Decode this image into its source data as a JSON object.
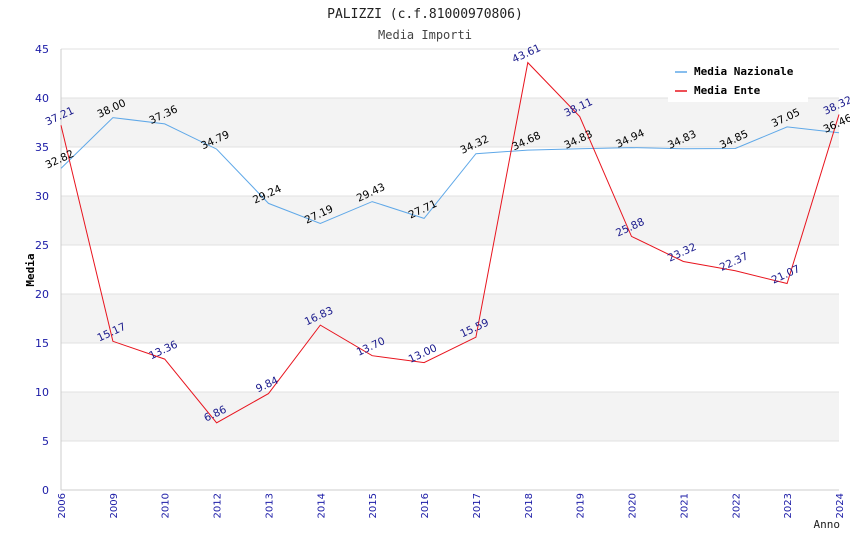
{
  "chart_data": {
    "type": "line",
    "title": "PALIZZI (c.f.81000970806)",
    "subtitle": "Media Importi",
    "ylabel": "Media",
    "xlabel": "Anno",
    "ylim": [
      0,
      45
    ],
    "yticks": [
      0,
      5,
      10,
      15,
      20,
      25,
      30,
      35,
      40,
      45
    ],
    "categories": [
      "2006",
      "2009",
      "2010",
      "2012",
      "2013",
      "2014",
      "2015",
      "2016",
      "2017",
      "2018",
      "2019",
      "2020",
      "2021",
      "2022",
      "2023",
      "2024"
    ],
    "series": [
      {
        "name": "Media Nazionale",
        "color": "#5fa8e8",
        "label_color": "#000000",
        "values": [
          32.82,
          38.0,
          37.36,
          34.79,
          29.24,
          27.19,
          29.43,
          27.71,
          34.32,
          34.68,
          34.83,
          34.94,
          34.83,
          34.85,
          37.05,
          36.46
        ],
        "labels": [
          "32.82",
          "38.00",
          "37.36",
          "34.79",
          "29.24",
          "27.19",
          "29.43",
          "27.71",
          "34.32",
          "34.68",
          "34.83",
          "34.94",
          "34.83",
          "34.85",
          "37.05",
          "36.46"
        ]
      },
      {
        "name": "Media Ente",
        "color": "#e8141e",
        "label_color": "#1a1a8c",
        "values": [
          37.21,
          15.17,
          13.36,
          6.86,
          9.84,
          16.83,
          13.7,
          13.0,
          15.59,
          43.61,
          38.11,
          25.88,
          23.32,
          22.37,
          21.07,
          38.32
        ],
        "labels": [
          "37.21",
          "15.17",
          "13.36",
          "6.86",
          "9.84",
          "16.83",
          "13.70",
          "13.00",
          "15.59",
          "43.61",
          "38.11",
          "25.88",
          "23.32",
          "22.37",
          "21.07",
          "38.32"
        ]
      }
    ],
    "grid": true,
    "band_color": "#f3f3f3",
    "legend_position": "top-right"
  }
}
